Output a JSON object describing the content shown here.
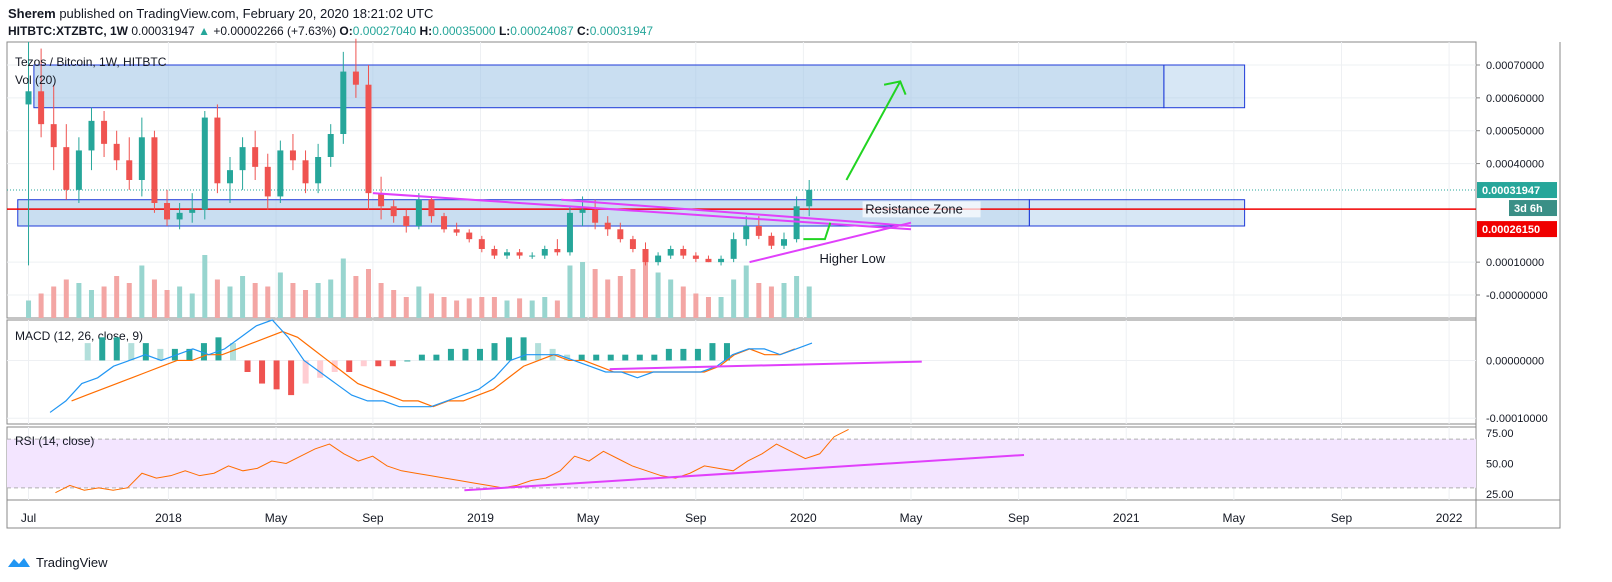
{
  "header": {
    "author": "Sherem",
    "published_text": "published on TradingView.com, February 20, 2020 18:21:02 UTC",
    "symbol": "HITBTC:XTZBTC, 1W",
    "last": "0.00031947",
    "change": "+0.00002266 (+7.63%)",
    "open_label": "O:",
    "open": "0.00027040",
    "high_label": "H:",
    "high": "0.00035000",
    "low_label": "L:",
    "low": "0.00024087",
    "close_label": "C:",
    "close": "0.00031947"
  },
  "footer": {
    "brand": "TradingView"
  },
  "colors": {
    "up": "#26a69a",
    "down": "#ef5350",
    "zone": "#9cc3e6",
    "trend": "#e040fb",
    "red_line": "#f00000",
    "macd": "#2196f3",
    "signal": "#ff6d00",
    "rsi": "#ff6d00",
    "rsi_band": "#f3e5ff"
  },
  "chart_data": {
    "type": "candlestick",
    "title": "Tezos / Bitcoin, 1W, HITBTC",
    "volume_label": "Vol (20)",
    "x_ticks": [
      {
        "label": "Jul",
        "t": 0.1
      },
      {
        "label": "2018",
        "t": 2.7
      },
      {
        "label": "May",
        "t": 4.7
      },
      {
        "label": "Sep",
        "t": 6.5
      },
      {
        "label": "2019",
        "t": 8.5
      },
      {
        "label": "May",
        "t": 10.5
      },
      {
        "label": "Sep",
        "t": 12.5
      },
      {
        "label": "2020",
        "t": 14.5
      },
      {
        "label": "May",
        "t": 16.5
      },
      {
        "label": "Sep",
        "t": 18.5
      },
      {
        "label": "2021",
        "t": 20.5
      },
      {
        "label": "May",
        "t": 22.5
      },
      {
        "label": "Sep",
        "t": 24.5
      },
      {
        "label": "2022",
        "t": 26.5
      }
    ],
    "x_range": [
      -0.3,
      27.0
    ],
    "price": {
      "ylim": [
        -7e-05,
        0.00077
      ],
      "ticks": [
        "0.00070000",
        "0.00060000",
        "0.00050000",
        "0.00040000",
        "0.00010000",
        "-0.00000000"
      ],
      "tick_values": [
        0.0007,
        0.0006,
        0.0005,
        0.0004,
        0.0001,
        0.0
      ],
      "last_label": "0.00031947",
      "last_value": 0.00031947,
      "countdown_label": "3d 6h",
      "resistance_label": "0.00026150",
      "resistance_value": 0.0002615,
      "annotations": [
        "Resistance Zone",
        "Higher Low"
      ],
      "zones": [
        {
          "from": 0.00057,
          "to": 0.0007
        },
        {
          "from": 0.00021,
          "to": 0.00029
        }
      ],
      "candles": [
        [
          0.00058,
          0.00077,
          9e-05,
          0.00062
        ],
        [
          0.00062,
          0.00075,
          0.00048,
          0.00052
        ],
        [
          0.00052,
          0.00064,
          0.00038,
          0.00045
        ],
        [
          0.00045,
          0.00052,
          0.00029,
          0.00032
        ],
        [
          0.00032,
          0.00048,
          0.00028,
          0.00044
        ],
        [
          0.00044,
          0.00057,
          0.00038,
          0.00053
        ],
        [
          0.00053,
          0.00056,
          0.00042,
          0.00046
        ],
        [
          0.00046,
          0.0005,
          0.00038,
          0.00041
        ],
        [
          0.00041,
          0.00048,
          0.00032,
          0.00035
        ],
        [
          0.00035,
          0.00054,
          0.0003,
          0.00048
        ],
        [
          0.00048,
          0.0005,
          0.00025,
          0.00028
        ],
        [
          0.00028,
          0.00032,
          0.00021,
          0.00023
        ],
        [
          0.00023,
          0.00028,
          0.0002,
          0.00025
        ],
        [
          0.00025,
          0.00031,
          0.00022,
          0.00026
        ],
        [
          0.00026,
          0.00056,
          0.00023,
          0.00054
        ],
        [
          0.00054,
          0.00058,
          0.00031,
          0.00034
        ],
        [
          0.00034,
          0.00042,
          0.00028,
          0.00038
        ],
        [
          0.00038,
          0.00048,
          0.00032,
          0.00045
        ],
        [
          0.00045,
          0.0005,
          0.00035,
          0.00039
        ],
        [
          0.00039,
          0.00043,
          0.00026,
          0.0003
        ],
        [
          0.0003,
          0.00047,
          0.00028,
          0.00044
        ],
        [
          0.00044,
          0.00049,
          0.00038,
          0.00041
        ],
        [
          0.00041,
          0.00044,
          0.00031,
          0.00034
        ],
        [
          0.00034,
          0.00046,
          0.00031,
          0.00042
        ],
        [
          0.00042,
          0.00052,
          0.00039,
          0.00049
        ],
        [
          0.00049,
          0.00074,
          0.00046,
          0.00068
        ],
        [
          0.00068,
          0.00078,
          0.0006,
          0.00064
        ],
        [
          0.00064,
          0.0007,
          0.00026,
          0.00031
        ],
        [
          0.00031,
          0.00036,
          0.00023,
          0.00027
        ],
        [
          0.00027,
          0.00029,
          0.00022,
          0.00024
        ],
        [
          0.00024,
          0.00026,
          0.00019,
          0.00021
        ],
        [
          0.00021,
          0.00031,
          0.0002,
          0.00029
        ],
        [
          0.00029,
          0.0003,
          0.00022,
          0.00024
        ],
        [
          0.00024,
          0.00025,
          0.00019,
          0.0002
        ],
        [
          0.0002,
          0.00022,
          0.00018,
          0.00019
        ],
        [
          0.00019,
          0.0002,
          0.00016,
          0.00017
        ],
        [
          0.00017,
          0.00018,
          0.00013,
          0.00014
        ],
        [
          0.00014,
          0.00015,
          0.00011,
          0.00012
        ],
        [
          0.00012,
          0.00014,
          0.00011,
          0.00013
        ],
        [
          0.00013,
          0.00014,
          0.00011,
          0.00012
        ],
        [
          0.00012,
          0.00013,
          0.00011,
          0.00012
        ],
        [
          0.00012,
          0.00015,
          0.00011,
          0.00014
        ],
        [
          0.00014,
          0.00017,
          0.00012,
          0.00013
        ],
        [
          0.00013,
          0.00027,
          0.00012,
          0.00025
        ],
        [
          0.00025,
          0.0003,
          0.00021,
          0.00026
        ],
        [
          0.00026,
          0.00029,
          0.0002,
          0.00022
        ],
        [
          0.00022,
          0.00024,
          0.00018,
          0.0002
        ],
        [
          0.0002,
          0.00022,
          0.00016,
          0.00017
        ],
        [
          0.00017,
          0.00018,
          0.00013,
          0.00014
        ],
        [
          0.00014,
          0.00016,
          9e-05,
          0.0001
        ],
        [
          0.0001,
          0.00013,
          9e-05,
          0.00012
        ],
        [
          0.00012,
          0.00015,
          0.00011,
          0.00014
        ],
        [
          0.00014,
          0.00015,
          0.00011,
          0.00012
        ],
        [
          0.00012,
          0.00013,
          0.0001,
          0.00011
        ],
        [
          0.00011,
          0.00012,
          0.0001,
          0.0001
        ],
        [
          0.0001,
          0.00012,
          9e-05,
          0.00011
        ],
        [
          0.00011,
          0.00019,
          0.0001,
          0.00017
        ],
        [
          0.00017,
          0.00024,
          0.00015,
          0.00021
        ],
        [
          0.00021,
          0.00024,
          0.00017,
          0.00018
        ],
        [
          0.00018,
          0.00019,
          0.00014,
          0.00015
        ],
        [
          0.00015,
          0.00019,
          0.00014,
          0.00017
        ],
        [
          0.00017,
          0.0003,
          0.00016,
          0.00027
        ],
        [
          0.00027,
          0.00035,
          0.00024,
          0.00032
        ]
      ]
    },
    "volume": [
      0.25,
      0.35,
      0.45,
      0.55,
      0.5,
      0.4,
      0.45,
      0.6,
      0.5,
      0.75,
      0.55,
      0.4,
      0.45,
      0.35,
      0.9,
      0.55,
      0.45,
      0.6,
      0.5,
      0.45,
      0.65,
      0.5,
      0.4,
      0.5,
      0.55,
      0.85,
      0.6,
      0.7,
      0.5,
      0.4,
      0.3,
      0.45,
      0.35,
      0.3,
      0.25,
      0.28,
      0.3,
      0.3,
      0.25,
      0.28,
      0.25,
      0.3,
      0.25,
      0.75,
      0.8,
      0.7,
      0.55,
      0.6,
      0.7,
      0.9,
      0.65,
      0.55,
      0.45,
      0.35,
      0.3,
      0.3,
      0.55,
      0.75,
      0.5,
      0.45,
      0.5,
      0.6,
      0.45
    ],
    "macd": {
      "label": "MACD (12, 26, close, 9)",
      "ylim": [
        -0.00011,
        7e-05
      ],
      "ticks": [
        "0.00000000",
        "-0.00010000"
      ],
      "tick_values": [
        0.0,
        -0.0001
      ],
      "macd": [
        -9e-05,
        -7e-05,
        -4e-05,
        -3e-05,
        -1e-05,
        0.0,
        1e-05,
        0.0,
        1e-05,
        2e-05,
        1e-05,
        2e-05,
        4e-05,
        6e-05,
        7e-05,
        4e-05,
        0.0,
        -2e-05,
        -4e-05,
        -6e-05,
        -7e-05,
        -7e-05,
        -8e-05,
        -8e-05,
        -8e-05,
        -7e-05,
        -6e-05,
        -5e-05,
        -3e-05,
        0.0,
        1e-05,
        1e-05,
        1e-05,
        0.0,
        -1e-05,
        -2e-05,
        -2e-05,
        -3e-05,
        -2e-05,
        -2e-05,
        -2e-05,
        -2e-05,
        -1e-05,
        1e-05,
        2e-05,
        2e-05,
        1e-05,
        2e-05,
        3e-05
      ],
      "signal": [
        -7e-05,
        -6e-05,
        -5e-05,
        -4e-05,
        -3e-05,
        -2e-05,
        -1e-05,
        0.0,
        0.0,
        1e-05,
        1e-05,
        2e-05,
        3e-05,
        4e-05,
        5e-05,
        4e-05,
        2e-05,
        0.0,
        -2e-05,
        -4e-05,
        -5e-05,
        -6e-05,
        -7e-05,
        -7e-05,
        -8e-05,
        -7e-05,
        -7e-05,
        -6e-05,
        -5e-05,
        -3e-05,
        -1e-05,
        0.0,
        1e-05,
        0.0,
        0.0,
        -1e-05,
        -2e-05,
        -2e-05,
        -2e-05,
        -2e-05,
        -2e-05,
        -2e-05,
        -2e-05,
        -1e-05,
        1e-05,
        2e-05,
        1e-05,
        1e-05,
        2e-05
      ],
      "hist": [
        3e-05,
        4e-05,
        4e-05,
        3e-05,
        3e-05,
        2e-05,
        2e-05,
        2e-05,
        3e-05,
        4e-05,
        3e-05,
        -2e-05,
        -4e-05,
        -5e-05,
        -6e-05,
        -4e-05,
        -3e-05,
        -2e-05,
        -2e-05,
        -1e-05,
        -1e-05,
        -1e-05,
        0.0,
        1e-05,
        1e-05,
        2e-05,
        2e-05,
        2e-05,
        3e-05,
        4e-05,
        4e-05,
        3e-05,
        2e-05,
        1e-05,
        1e-05,
        1e-05,
        1e-05,
        1e-05,
        1e-05,
        1e-05,
        2e-05,
        2e-05,
        2e-05,
        3e-05,
        3e-05
      ]
    },
    "rsi": {
      "label": "RSI (14, close)",
      "ylim": [
        20,
        80
      ],
      "ticks": [
        "75.00",
        "50.00",
        "25.00"
      ],
      "tick_values": [
        75,
        50,
        25
      ],
      "band": [
        30,
        70
      ],
      "values": [
        26,
        32,
        28,
        30,
        28,
        30,
        42,
        38,
        40,
        44,
        40,
        42,
        48,
        44,
        46,
        52,
        50,
        56,
        62,
        66,
        58,
        52,
        56,
        48,
        44,
        42,
        40,
        38,
        36,
        34,
        32,
        30,
        32,
        36,
        38,
        44,
        56,
        52,
        60,
        54,
        48,
        44,
        40,
        38,
        42,
        48,
        46,
        44,
        52,
        58,
        66,
        60,
        54,
        58,
        72,
        78
      ]
    }
  }
}
